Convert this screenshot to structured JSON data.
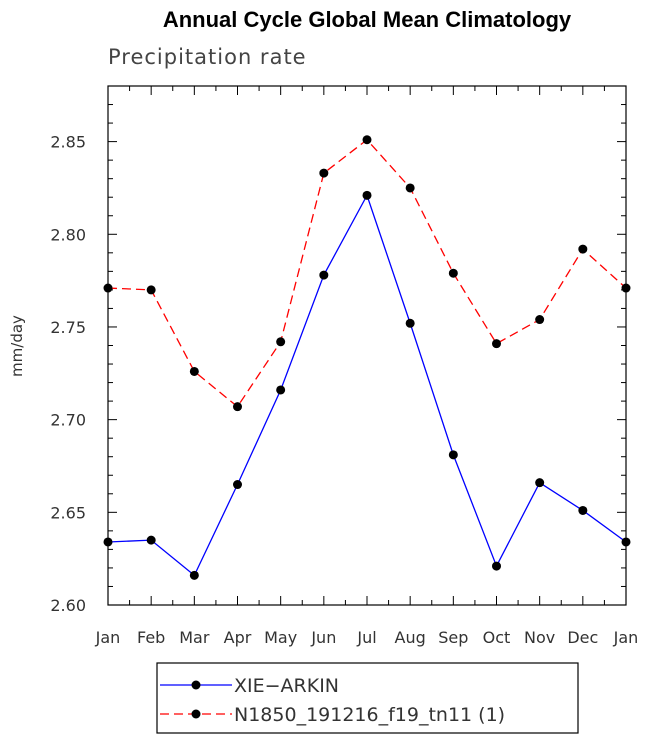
{
  "chart_data": {
    "type": "line",
    "title": "Annual Cycle Global Mean Climatology",
    "subtitle": "Precipitation rate",
    "xlabel": "",
    "ylabel": "mm/day",
    "categories": [
      "Jan",
      "Feb",
      "Mar",
      "Apr",
      "May",
      "Jun",
      "Jul",
      "Aug",
      "Sep",
      "Oct",
      "Nov",
      "Dec",
      "Jan"
    ],
    "ylim": [
      2.6,
      2.88
    ],
    "yticks": [
      "2.60",
      "2.65",
      "2.70",
      "2.75",
      "2.80",
      "2.85"
    ],
    "ytick_values": [
      2.6,
      2.65,
      2.7,
      2.75,
      2.8,
      2.85
    ],
    "grid": false,
    "legend_position": "bottom",
    "series": [
      {
        "name": "XIE−ARKIN",
        "color": "#0000ff",
        "dash": "solid",
        "values": [
          2.634,
          2.635,
          2.616,
          2.665,
          2.716,
          2.778,
          2.821,
          2.752,
          2.681,
          2.621,
          2.666,
          2.651,
          2.634
        ]
      },
      {
        "name": "N1850_191216_f19_tn11 (1)",
        "color": "#ff0000",
        "dash": "dashed",
        "values": [
          2.771,
          2.77,
          2.726,
          2.707,
          2.742,
          2.833,
          2.851,
          2.825,
          2.779,
          2.741,
          2.754,
          2.792,
          2.771
        ]
      }
    ]
  }
}
